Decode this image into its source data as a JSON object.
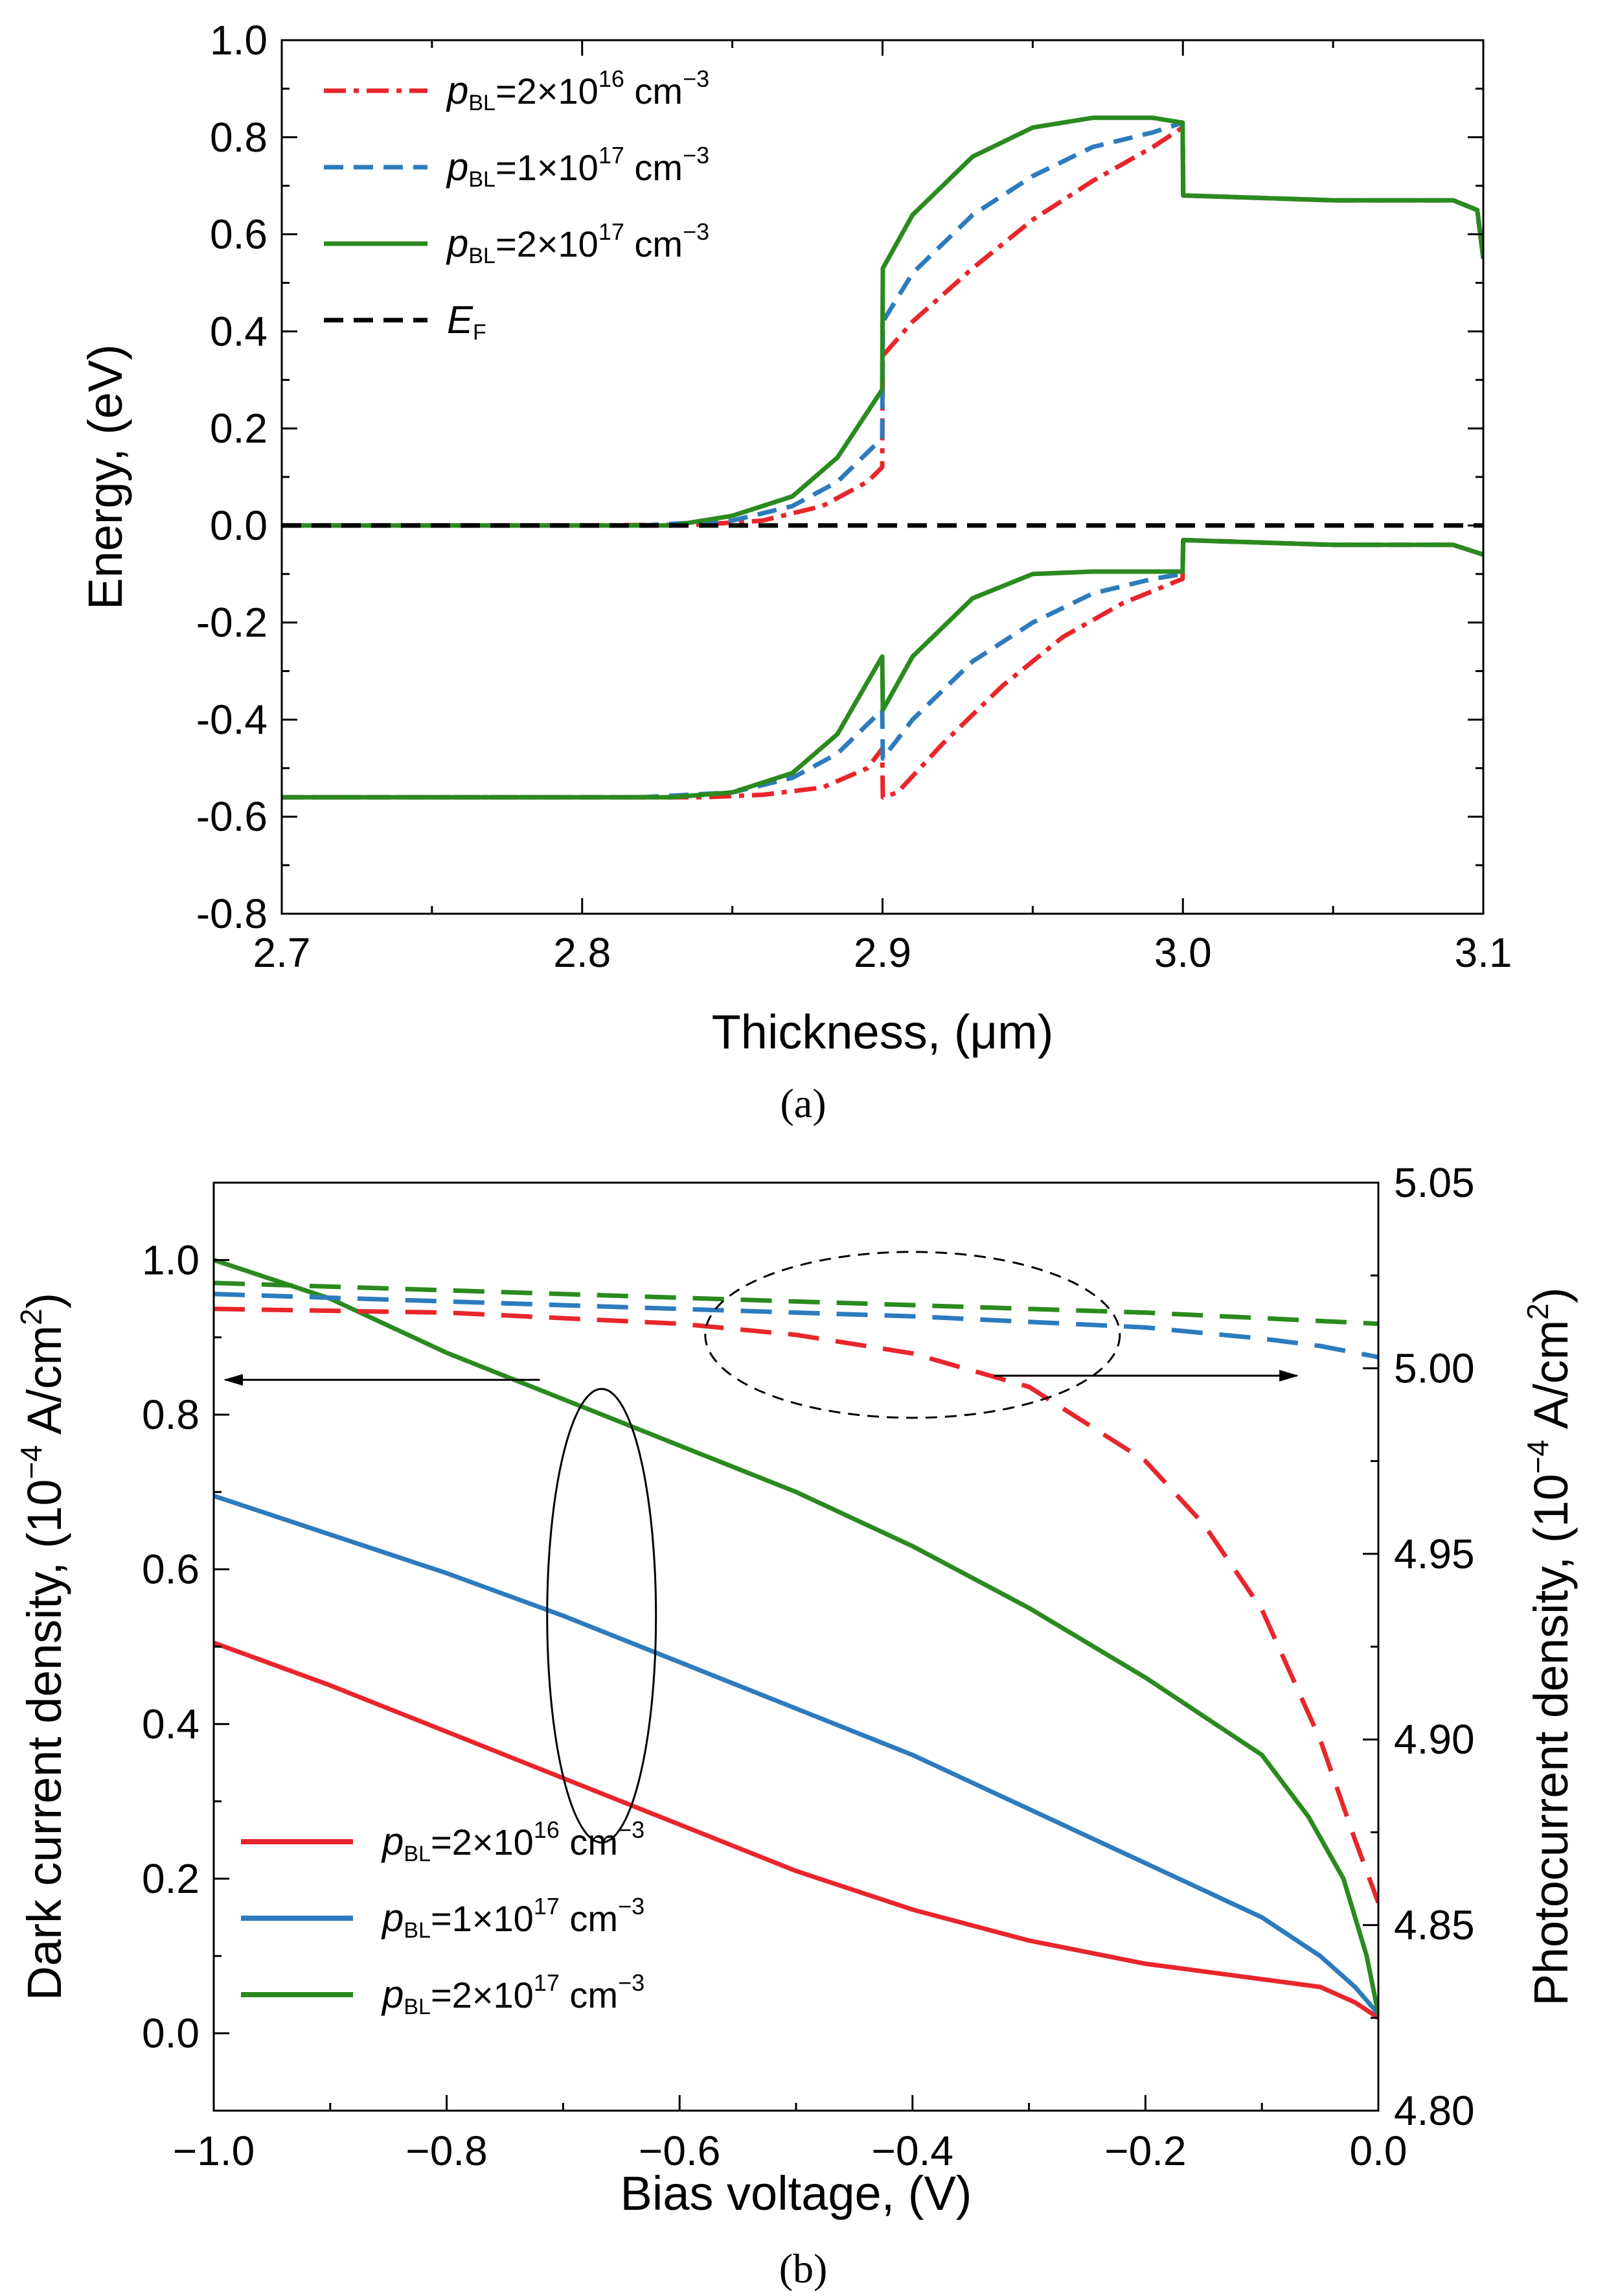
{
  "chart_data": [
    {
      "type": "line",
      "panel": "a",
      "caption": "(a)",
      "xlabel": "Thickness, (μm)",
      "ylabel": "Energy, (eV)",
      "xlim": [
        2.7,
        3.1
      ],
      "ylim": [
        -0.8,
        1.0
      ],
      "xticks": [
        "2.7",
        "2.8",
        "2.9",
        "3.0",
        "3.1"
      ],
      "yticks": [
        "-0.8",
        "-0.6",
        "-0.4",
        "-0.2",
        "0.0",
        "0.2",
        "0.4",
        "0.6",
        "0.8",
        "1.0"
      ],
      "legend_position": "top-left",
      "legend": [
        {
          "prefix": "p",
          "sub": "BL",
          "mid": "=2×10",
          "sup": "16",
          "tail": " cm",
          "sup2": "−3",
          "color": "#e8262c",
          "dash": "dashdot"
        },
        {
          "prefix": "p",
          "sub": "BL",
          "mid": "=1×10",
          "sup": "17",
          "tail": " cm",
          "sup2": "−3",
          "color": "#2d7bbd",
          "dash": "dash"
        },
        {
          "prefix": "p",
          "sub": "BL",
          "mid": "=2×10",
          "sup": "17",
          "tail": " cm",
          "sup2": "−3",
          "color": "#2b8a1f",
          "dash": "solid"
        },
        {
          "prefix": "E",
          "sub": "F",
          "mid": "",
          "sup": "",
          "tail": "",
          "sup2": "",
          "color": "#000000",
          "dash": "dash"
        }
      ],
      "series": [
        {
          "name": "pBL=2e16 conduction band",
          "color": "#e8262c",
          "dash": "dashdot",
          "x": [
            2.7,
            2.8,
            2.84,
            2.86,
            2.88,
            2.895,
            2.8999,
            2.9001,
            2.91,
            2.93,
            2.95,
            2.97,
            2.99,
            2.9999,
            3.0001,
            3.05,
            3.09,
            3.098,
            3.1
          ],
          "y": [
            0.0,
            0.0,
            0.002,
            0.01,
            0.04,
            0.09,
            0.12,
            0.35,
            0.42,
            0.53,
            0.63,
            0.71,
            0.78,
            0.82,
            0.68,
            0.67,
            0.67,
            0.65,
            0.55
          ]
        },
        {
          "name": "pBL=1e17 conduction band",
          "color": "#2d7bbd",
          "dash": "dash",
          "x": [
            2.7,
            2.82,
            2.85,
            2.87,
            2.885,
            2.8999,
            2.9001,
            2.91,
            2.93,
            2.95,
            2.97,
            2.99,
            2.9999,
            3.0001,
            3.05,
            3.09,
            3.098,
            3.1
          ],
          "y": [
            0.0,
            0.0,
            0.01,
            0.04,
            0.09,
            0.18,
            0.42,
            0.52,
            0.64,
            0.72,
            0.78,
            0.81,
            0.83,
            0.68,
            0.67,
            0.67,
            0.65,
            0.55
          ]
        },
        {
          "name": "pBL=2e17 conduction band",
          "color": "#2b8a1f",
          "dash": "solid",
          "x": [
            2.7,
            2.83,
            2.85,
            2.87,
            2.885,
            2.8999,
            2.9001,
            2.91,
            2.93,
            2.95,
            2.97,
            2.99,
            2.9999,
            3.0001,
            3.05,
            3.09,
            3.098,
            3.1
          ],
          "y": [
            0.0,
            0.0,
            0.02,
            0.06,
            0.14,
            0.28,
            0.53,
            0.64,
            0.76,
            0.82,
            0.84,
            0.84,
            0.83,
            0.68,
            0.67,
            0.67,
            0.65,
            0.55
          ]
        },
        {
          "name": "pBL=2e16 valence band",
          "color": "#e8262c",
          "dash": "dashdot",
          "x": [
            2.7,
            2.84,
            2.86,
            2.88,
            2.895,
            2.8999,
            2.9001,
            2.905,
            2.92,
            2.94,
            2.96,
            2.98,
            2.9999,
            3.0001,
            3.05,
            3.09,
            3.1
          ],
          "y": [
            -0.56,
            -0.56,
            -0.555,
            -0.54,
            -0.5,
            -0.46,
            -0.56,
            -0.55,
            -0.45,
            -0.33,
            -0.23,
            -0.16,
            -0.11,
            -0.03,
            -0.04,
            -0.04,
            -0.06
          ]
        },
        {
          "name": "pBL=1e17 valence band",
          "color": "#2d7bbd",
          "dash": "dash",
          "x": [
            2.7,
            2.82,
            2.85,
            2.87,
            2.885,
            2.8999,
            2.9001,
            2.91,
            2.93,
            2.95,
            2.97,
            2.99,
            2.9999,
            3.0001,
            3.05,
            3.09,
            3.1
          ],
          "y": [
            -0.56,
            -0.56,
            -0.55,
            -0.52,
            -0.47,
            -0.38,
            -0.48,
            -0.4,
            -0.28,
            -0.2,
            -0.14,
            -0.11,
            -0.1,
            -0.03,
            -0.04,
            -0.04,
            -0.06
          ]
        },
        {
          "name": "pBL=2e17 valence band",
          "color": "#2b8a1f",
          "dash": "solid",
          "x": [
            2.7,
            2.83,
            2.85,
            2.87,
            2.885,
            2.8999,
            2.9001,
            2.91,
            2.93,
            2.95,
            2.97,
            2.99,
            2.9999,
            3.0001,
            3.05,
            3.09,
            3.1
          ],
          "y": [
            -0.56,
            -0.56,
            -0.55,
            -0.51,
            -0.43,
            -0.27,
            -0.38,
            -0.27,
            -0.15,
            -0.1,
            -0.095,
            -0.095,
            -0.095,
            -0.03,
            -0.04,
            -0.04,
            -0.06
          ]
        },
        {
          "name": "EF",
          "color": "#000000",
          "dash": "dash",
          "x": [
            2.7,
            3.1
          ],
          "y": [
            0.0,
            0.0
          ]
        }
      ]
    },
    {
      "type": "line",
      "panel": "b",
      "caption": "(b)",
      "xlabel": "Bias voltage, (V)",
      "ylabel": "Dark current density, (10",
      "ylabel_sup": "−4",
      "ylabel_tail": " A/cm",
      "ylabel_sup2": "2",
      "ylabel_end": ")",
      "y2label": "Photocurrent density, (10",
      "y2label_sup": "−4",
      "y2label_tail": " A/cm",
      "y2label_sup2": "2",
      "y2label_end": ")",
      "xlim": [
        -1.0,
        0.0
      ],
      "ylim": [
        -0.1,
        1.1
      ],
      "y2lim": [
        4.8,
        5.05
      ],
      "xticks": [
        "−1.0",
        "−0.8",
        "−0.6",
        "−0.4",
        "−0.2",
        "0.0"
      ],
      "yticks": [
        "0.0",
        "0.2",
        "0.4",
        "0.6",
        "0.8",
        "1.0"
      ],
      "y2ticks": [
        "4.80",
        "4.85",
        "4.90",
        "4.95",
        "5.00",
        "5.05"
      ],
      "legend_position": "bottom-left",
      "legend": [
        {
          "prefix": "p",
          "sub": "BL",
          "mid": "=2×10",
          "sup": "16",
          "tail": " cm",
          "sup2": "−3",
          "color": "#e8262c"
        },
        {
          "prefix": "p",
          "sub": "BL",
          "mid": "=1×10",
          "sup": "17",
          "tail": " cm",
          "sup2": "−3",
          "color": "#2d7bbd"
        },
        {
          "prefix": "p",
          "sub": "BL",
          "mid": "=2×10",
          "sup": "17",
          "tail": " cm",
          "sup2": "−3",
          "color": "#2b8a1f"
        }
      ],
      "series": [
        {
          "name": "Dark pBL=2e16",
          "axis": "left",
          "color": "#e8262c",
          "dash": "solid",
          "x": [
            -1.0,
            -0.9,
            -0.8,
            -0.7,
            -0.6,
            -0.5,
            -0.4,
            -0.3,
            -0.2,
            -0.15,
            -0.1,
            -0.05,
            -0.02,
            0.0
          ],
          "y": [
            0.505,
            0.45,
            0.39,
            0.33,
            0.27,
            0.21,
            0.16,
            0.12,
            0.09,
            0.08,
            0.07,
            0.06,
            0.04,
            0.02
          ]
        },
        {
          "name": "Dark pBL=1e17",
          "axis": "left",
          "color": "#2d7bbd",
          "dash": "solid",
          "x": [
            -1.0,
            -0.9,
            -0.8,
            -0.7,
            -0.6,
            -0.5,
            -0.4,
            -0.3,
            -0.2,
            -0.1,
            -0.05,
            -0.02,
            0.0
          ],
          "y": [
            0.695,
            0.645,
            0.595,
            0.54,
            0.48,
            0.42,
            0.36,
            0.29,
            0.22,
            0.15,
            0.1,
            0.06,
            0.025
          ]
        },
        {
          "name": "Dark pBL=2e17",
          "axis": "left",
          "color": "#2b8a1f",
          "dash": "solid",
          "x": [
            -1.0,
            -0.9,
            -0.8,
            -0.7,
            -0.6,
            -0.5,
            -0.4,
            -0.3,
            -0.2,
            -0.1,
            -0.06,
            -0.03,
            -0.01,
            0.0
          ],
          "y": [
            1.0,
            0.95,
            0.88,
            0.82,
            0.76,
            0.7,
            0.63,
            0.55,
            0.46,
            0.36,
            0.28,
            0.2,
            0.1,
            0.025
          ]
        },
        {
          "name": "Photo pBL=2e16",
          "axis": "right",
          "color": "#e8262c",
          "dash": "dash",
          "x": [
            -1.0,
            -0.8,
            -0.6,
            -0.5,
            -0.4,
            -0.3,
            -0.2,
            -0.15,
            -0.1,
            -0.05,
            -0.02,
            0.0
          ],
          "y": [
            5.016,
            5.015,
            5.012,
            5.009,
            5.004,
            4.995,
            4.975,
            4.958,
            4.935,
            4.9,
            4.873,
            4.856
          ]
        },
        {
          "name": "Photo pBL=1e17",
          "axis": "right",
          "color": "#2d7bbd",
          "dash": "dash",
          "x": [
            -1.0,
            -0.8,
            -0.6,
            -0.4,
            -0.2,
            -0.1,
            -0.05,
            0.0
          ],
          "y": [
            5.02,
            5.018,
            5.016,
            5.014,
            5.011,
            5.008,
            5.006,
            5.003
          ]
        },
        {
          "name": "Photo pBL=2e17",
          "axis": "right",
          "color": "#2b8a1f",
          "dash": "dash",
          "x": [
            -1.0,
            -0.8,
            -0.6,
            -0.4,
            -0.2,
            0.0
          ],
          "y": [
            5.023,
            5.021,
            5.019,
            5.017,
            5.015,
            5.012
          ]
        }
      ]
    }
  ]
}
